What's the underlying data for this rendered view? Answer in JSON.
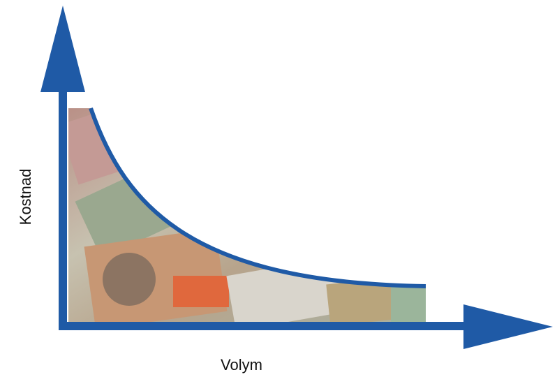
{
  "diagram": {
    "y_axis_label": "Kostnad",
    "x_axis_label": "Volym"
  }
}
